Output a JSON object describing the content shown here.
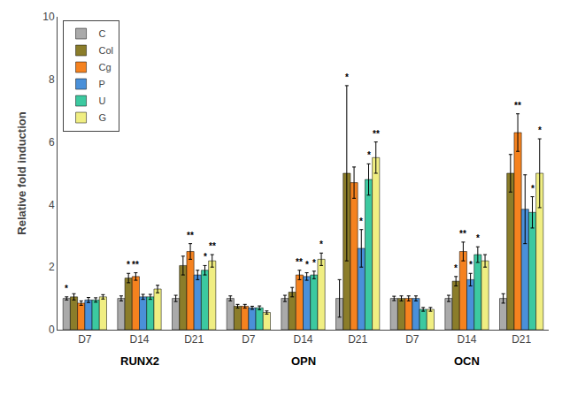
{
  "chart_data": {
    "type": "bar",
    "ylabel": "Relative fold induction",
    "categories": [
      [
        "RUNX2",
        "D7"
      ],
      [
        "RUNX2",
        "D14"
      ],
      [
        "RUNX2",
        "D21"
      ],
      [
        "OPN",
        "D7"
      ],
      [
        "OPN",
        "D14"
      ],
      [
        "OPN",
        "D21"
      ],
      [
        "OCN",
        "D7"
      ],
      [
        "OCN",
        "D14"
      ],
      [
        "OCN",
        "D21"
      ]
    ],
    "series": [
      {
        "name": "C",
        "color": "#aaaaaa",
        "values": [
          1.0,
          1.0,
          1.0,
          1.0,
          1.0,
          1.0,
          1.0,
          1.0,
          1.0
        ],
        "errors": [
          0.05,
          0.08,
          0.1,
          0.08,
          0.1,
          0.6,
          0.07,
          0.1,
          0.15
        ],
        "annotations": [
          "*",
          null,
          null,
          null,
          null,
          null,
          null,
          null,
          null
        ]
      },
      {
        "name": "Col",
        "color": "#8B7D2A",
        "values": [
          1.05,
          1.65,
          2.05,
          0.75,
          1.2,
          5.0,
          1.0,
          1.55,
          5.0
        ],
        "errors": [
          0.1,
          0.15,
          0.3,
          0.06,
          0.15,
          2.8,
          0.08,
          0.15,
          0.6
        ],
        "annotations": [
          null,
          "*",
          null,
          null,
          null,
          "*",
          null,
          "*",
          null
        ]
      },
      {
        "name": "Cg",
        "color": "#F5821F",
        "values": [
          0.85,
          1.7,
          2.5,
          0.75,
          1.75,
          4.7,
          1.0,
          2.5,
          6.3
        ],
        "errors": [
          0.07,
          0.12,
          0.25,
          0.06,
          0.15,
          0.5,
          0.08,
          0.3,
          0.6
        ],
        "annotations": [
          null,
          "**",
          "**",
          null,
          "**",
          null,
          null,
          "**",
          "**"
        ]
      },
      {
        "name": "P",
        "color": "#4A90D9",
        "values": [
          0.95,
          1.05,
          1.75,
          0.7,
          1.7,
          2.6,
          1.0,
          1.6,
          3.85
        ],
        "errors": [
          0.08,
          0.08,
          0.15,
          0.05,
          0.12,
          0.6,
          0.08,
          0.2,
          1.1
        ],
        "annotations": [
          null,
          null,
          null,
          null,
          "*",
          "*",
          null,
          "*",
          null
        ]
      },
      {
        "name": "U",
        "color": "#3CC9A0",
        "values": [
          0.95,
          1.05,
          1.9,
          0.7,
          1.75,
          4.8,
          0.65,
          2.4,
          3.75
        ],
        "errors": [
          0.07,
          0.08,
          0.15,
          0.06,
          0.12,
          0.5,
          0.06,
          0.25,
          0.5
        ],
        "annotations": [
          null,
          null,
          "*",
          null,
          "*",
          "*",
          null,
          "*",
          "*"
        ]
      },
      {
        "name": "G",
        "color": "#F0EE82",
        "values": [
          1.05,
          1.3,
          2.2,
          0.55,
          2.25,
          5.5,
          0.65,
          2.2,
          5.0
        ],
        "errors": [
          0.07,
          0.12,
          0.2,
          0.05,
          0.2,
          0.5,
          0.06,
          0.2,
          1.1
        ],
        "annotations": [
          null,
          null,
          "**",
          null,
          "*",
          "**",
          null,
          null,
          "*"
        ]
      }
    ],
    "ylim": [
      0,
      10
    ],
    "yticks": [
      0,
      2,
      4,
      6,
      8,
      10
    ],
    "grid": false,
    "legend": "upper left"
  }
}
